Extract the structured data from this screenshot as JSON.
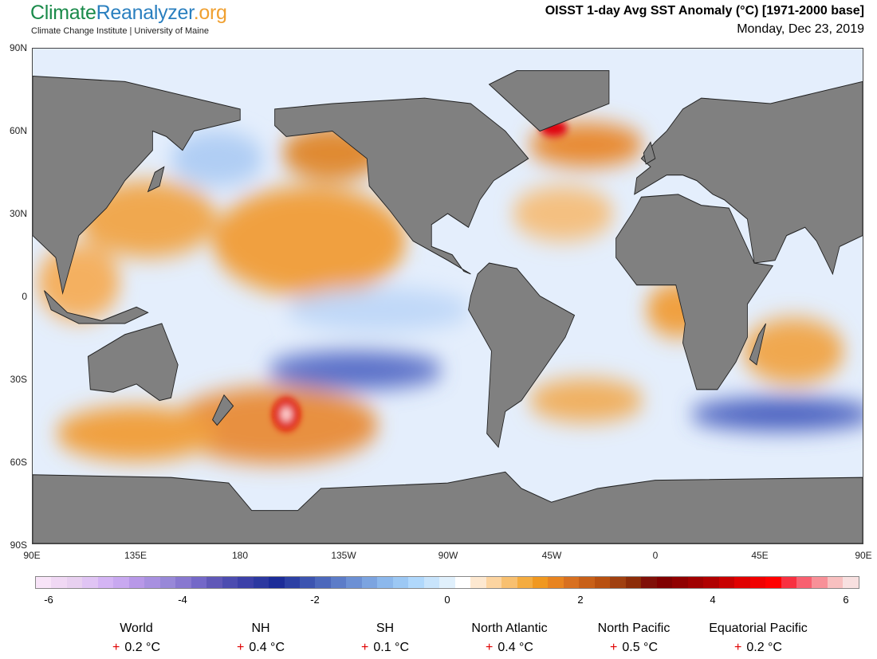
{
  "header": {
    "logo": {
      "part1": "Climate",
      "part2": "Reanalyzer",
      "part3": ".org"
    },
    "subtitle": "Climate Change Institute | University of Maine",
    "title": "OISST 1-day Avg SST Anomaly (°C) [1971-2000 base]",
    "date": "Monday, Dec 23, 2019"
  },
  "map": {
    "projection": "equirectangular, centered 90W",
    "land_color": "#808080",
    "lat_labels": [
      "90N",
      "60N",
      "30N",
      "0",
      "30S",
      "60S",
      "90S"
    ],
    "lon_labels": [
      "90E",
      "135E",
      "180",
      "135W",
      "90W",
      "45W",
      "0",
      "45E",
      "90E"
    ]
  },
  "colorbar": {
    "range": [
      -6,
      6
    ],
    "labels": [
      "-6",
      "-4",
      "-2",
      "0",
      "2",
      "4",
      "6"
    ],
    "colors": [
      "#f8e4f8",
      "#f0d8f4",
      "#e8d0f0",
      "#e0c4f4",
      "#d4b4f4",
      "#c8a8f0",
      "#b898e8",
      "#a890e0",
      "#9888d8",
      "#8878d0",
      "#7468c8",
      "#6058b8",
      "#4c4cb0",
      "#3c40a8",
      "#2c38a0",
      "#1c2c98",
      "#2c40a4",
      "#3c54b0",
      "#4c68bc",
      "#5c7cc8",
      "#6c90d4",
      "#7ca4e0",
      "#8cb8ec",
      "#9cc8f4",
      "#b0d8fc",
      "#c8e4fc",
      "#e0f0fc",
      "#ffffff",
      "#fde8d0",
      "#fcd4a0",
      "#f8c070",
      "#f4ac40",
      "#f09820",
      "#e88420",
      "#d87020",
      "#c86018",
      "#b85010",
      "#a04010",
      "#8c2c08",
      "#801008",
      "#800000",
      "#900000",
      "#a00000",
      "#b00000",
      "#c80000",
      "#e00000",
      "#f00000",
      "#ff0000",
      "#f83040",
      "#f86070",
      "#f89098",
      "#f8c0c0",
      "#f8e0e0"
    ]
  },
  "stats": [
    {
      "region": "World",
      "sign": "+",
      "value": "0.2 °C"
    },
    {
      "region": "NH",
      "sign": "+",
      "value": "0.4 °C"
    },
    {
      "region": "SH",
      "sign": "+",
      "value": "0.1 °C"
    },
    {
      "region": "North Atlantic",
      "sign": "+",
      "value": "0.4 °C"
    },
    {
      "region": "North Pacific",
      "sign": "+",
      "value": "0.5 °C"
    },
    {
      "region": "Equatorial Pacific",
      "sign": "+",
      "value": "0.2 °C"
    }
  ]
}
